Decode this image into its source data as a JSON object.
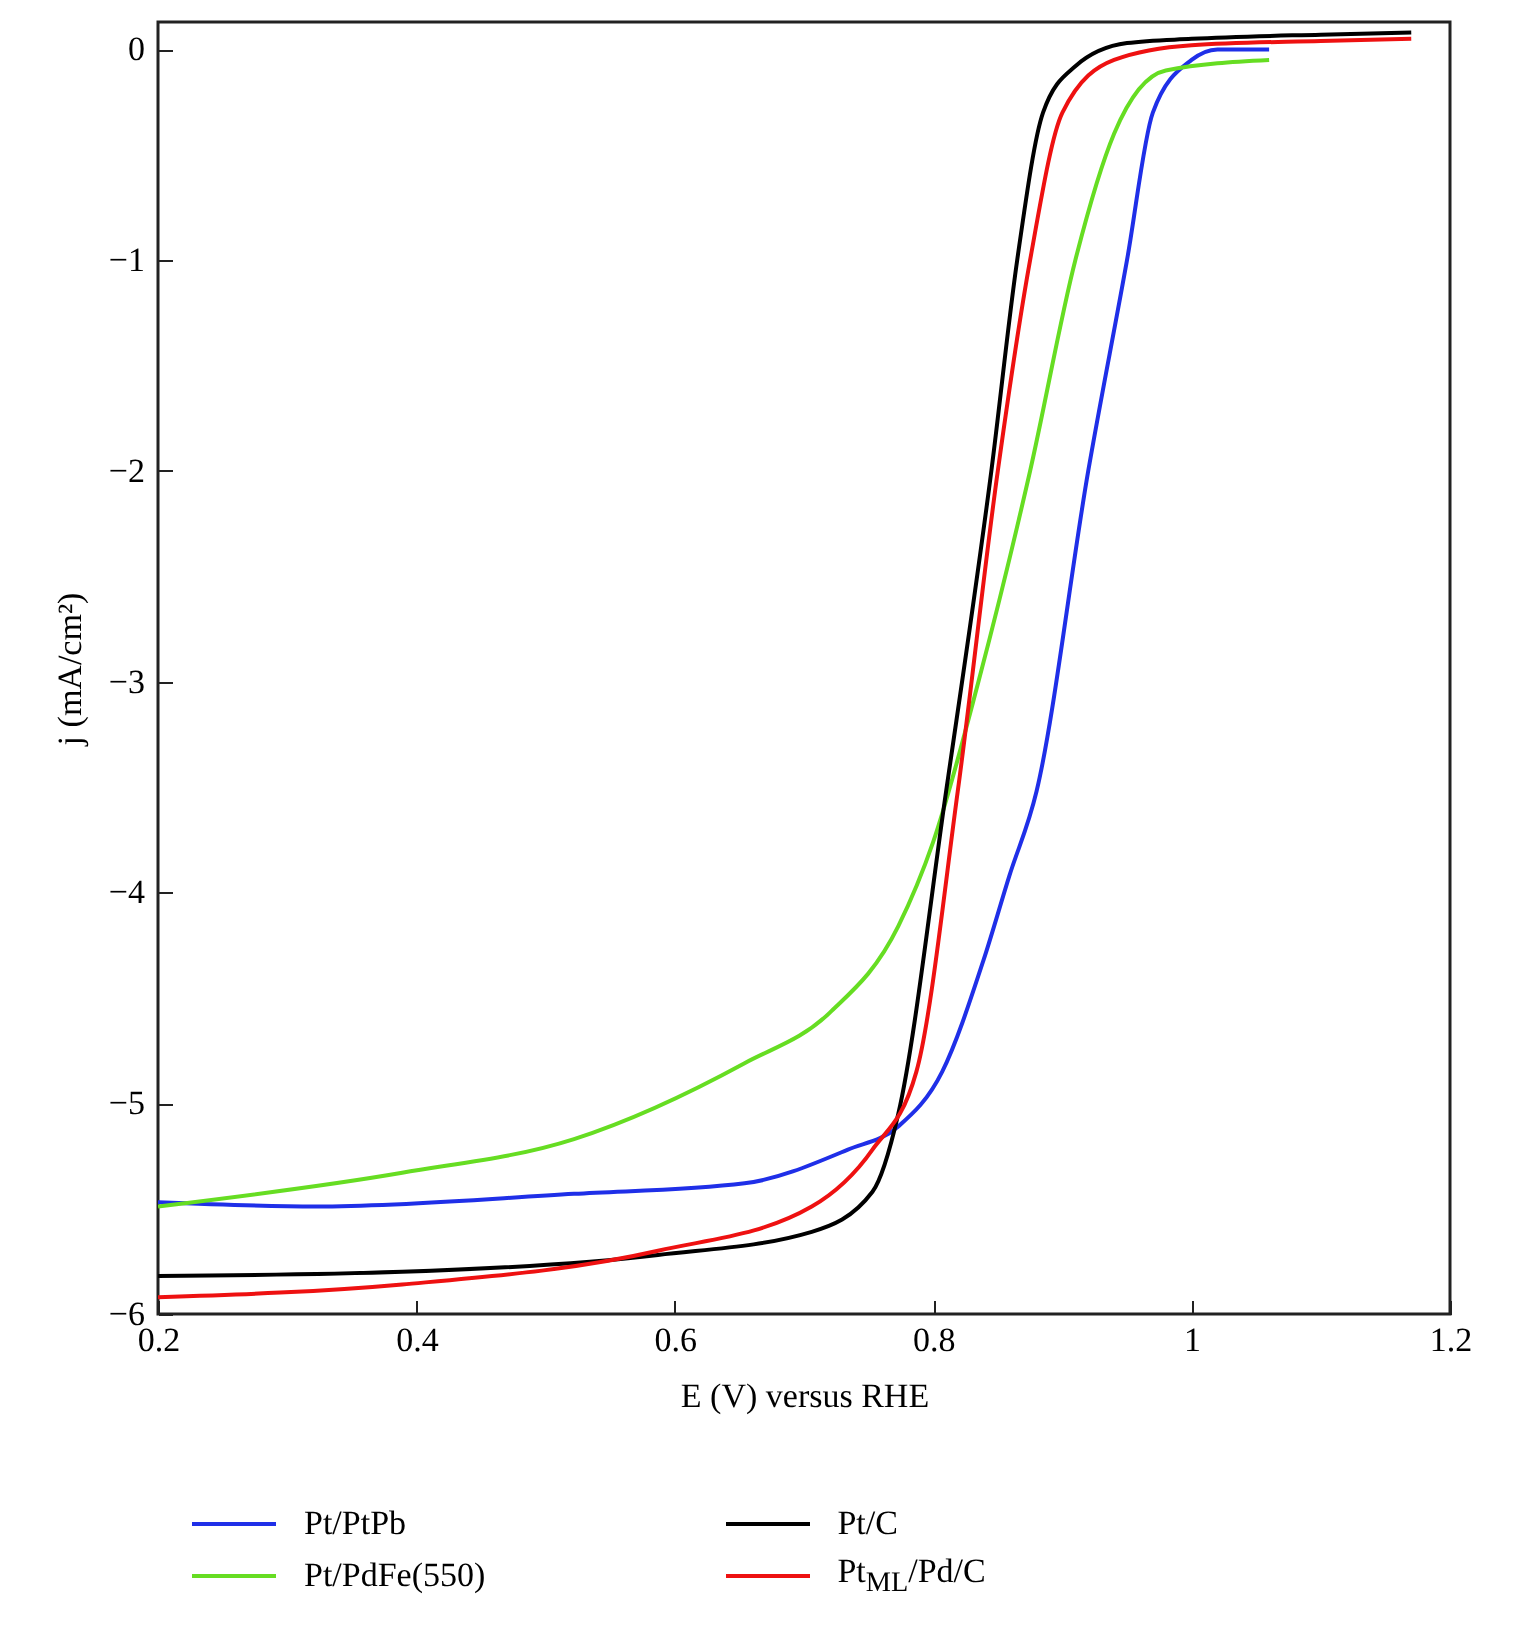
{
  "chart_data": {
    "type": "line",
    "xlabel": "E (V) versus RHE",
    "ylabel": "j (mA/cm²)",
    "xlim": [
      0.2,
      1.2
    ],
    "xticks": [
      0.2,
      0.4,
      0.6,
      0.8,
      1,
      1.2
    ],
    "ylim": [
      -6,
      0.13
    ],
    "yticks": [
      0,
      -1,
      -2,
      -3,
      -4,
      -5,
      -6
    ],
    "grid": false,
    "legend": "bottom",
    "line_style": "solid",
    "marker": "none",
    "series": [
      {
        "name": "Pt/PtPb",
        "color": "#1f2fe8",
        "x": [
          0.2,
          0.322,
          0.522,
          0.654,
          0.734,
          0.773,
          0.807,
          0.839,
          0.859,
          0.88,
          0.92,
          0.95,
          0.97,
          1.0,
          1.02,
          1.06
        ],
        "values": [
          -5.47,
          -5.49,
          -5.43,
          -5.38,
          -5.22,
          -5.11,
          -4.85,
          -4.32,
          -3.92,
          -3.52,
          -2.0,
          -1.0,
          -0.3,
          -0.05,
          0.0,
          0.0
        ]
      },
      {
        "name": "Pt/PdFe(550)",
        "color": "#66dd22",
        "x": [
          0.2,
          0.389,
          0.522,
          0.654,
          0.72,
          0.773,
          0.8,
          0.835,
          0.875,
          0.91,
          0.94,
          0.98,
          1.06
        ],
        "values": [
          -5.49,
          -5.33,
          -5.17,
          -4.81,
          -4.57,
          -4.16,
          -3.76,
          -3.0,
          -2.0,
          -1.0,
          -0.4,
          -0.1,
          -0.05
        ]
      },
      {
        "name": "Pt/C",
        "color": "#000000",
        "x": [
          0.2,
          0.389,
          0.587,
          0.706,
          0.753,
          0.773,
          0.81,
          0.845,
          0.865,
          0.885,
          0.91,
          0.95,
          1.0,
          1.1,
          1.17
        ],
        "values": [
          -5.82,
          -5.8,
          -5.72,
          -5.61,
          -5.42,
          -5.05,
          -3.52,
          -2.0,
          -1.0,
          -0.3,
          -0.08,
          0.03,
          0.05,
          0.07,
          0.08
        ]
      },
      {
        "name": "Pt$_{ML}$/Pd/C",
        "color": "#ee1111",
        "x": [
          0.2,
          0.389,
          0.587,
          0.706,
          0.753,
          0.787,
          0.819,
          0.85,
          0.875,
          0.9,
          0.94,
          1.0,
          1.1,
          1.17
        ],
        "values": [
          -5.92,
          -5.86,
          -5.7,
          -5.49,
          -5.22,
          -4.85,
          -3.52,
          -2.0,
          -1.0,
          -0.3,
          -0.05,
          0.02,
          0.04,
          0.05
        ]
      }
    ]
  }
}
